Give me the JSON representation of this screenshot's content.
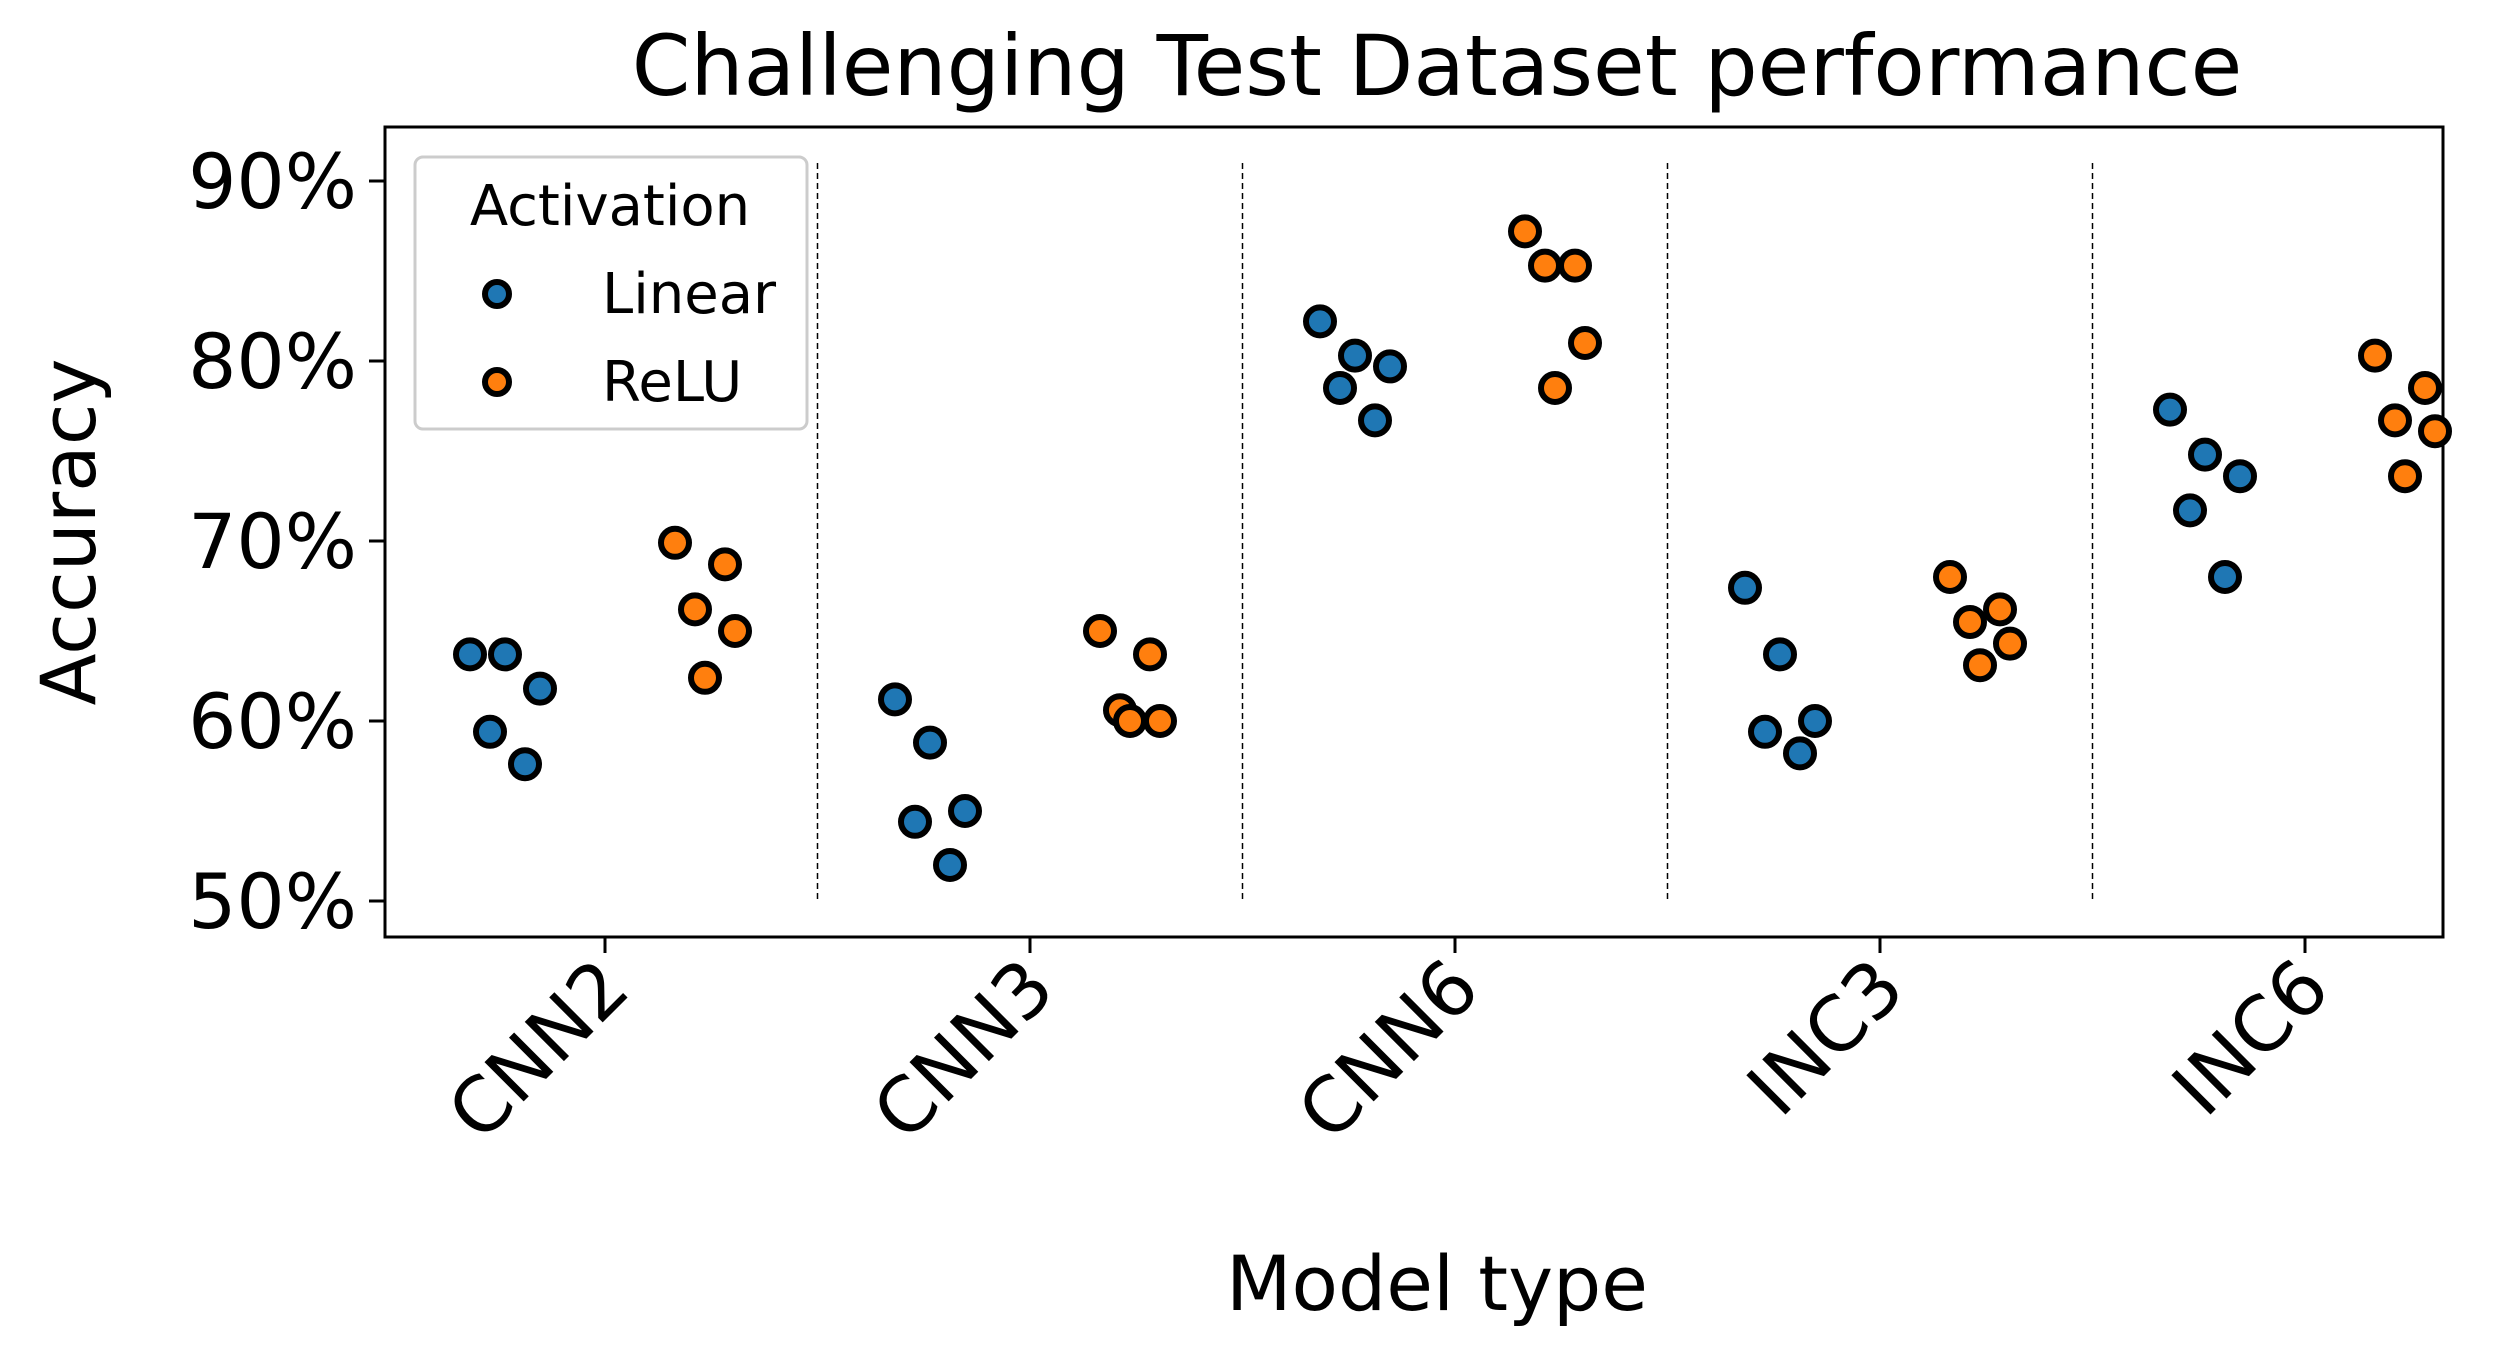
{
  "chart_data": {
    "type": "scatter",
    "title": "Challenging Test Dataset performance",
    "xlabel": "Model type",
    "ylabel": "Accuracy",
    "categories": [
      "CNN2",
      "CNN3",
      "CNN6",
      "INC3",
      "INC6"
    ],
    "ytick_labels": [
      "50%",
      "60%",
      "70%",
      "80%",
      "90%"
    ],
    "yticks": [
      50,
      60,
      70,
      80,
      90
    ],
    "ylim": [
      48,
      93
    ],
    "grid": false,
    "category_separators": "dashed vertical lines",
    "legend": {
      "title": "Activation",
      "placement": "upper-left",
      "entries": [
        "Linear",
        "ReLU"
      ]
    },
    "series": [
      {
        "name": "Linear",
        "color": "#1f77b4",
        "points": [
          {
            "category": "CNN2",
            "values": [
              63.7,
              63.7,
              61.8,
              59.4,
              57.6
            ]
          },
          {
            "category": "CNN3",
            "values": [
              61.2,
              58.8,
              55.0,
              54.4,
              52.0
            ]
          },
          {
            "category": "CNN6",
            "values": [
              82.2,
              80.3,
              79.7,
              78.5,
              76.7
            ]
          },
          {
            "category": "INC3",
            "values": [
              67.4,
              63.7,
              60.0,
              59.4,
              58.2
            ]
          },
          {
            "category": "INC6",
            "values": [
              77.3,
              74.8,
              73.6,
              71.7,
              68.0
            ]
          }
        ]
      },
      {
        "name": "ReLU",
        "color": "#ff7f0e",
        "points": [
          {
            "category": "CNN2",
            "values": [
              69.9,
              68.7,
              66.2,
              65.0,
              62.4
            ]
          },
          {
            "category": "CNN3",
            "values": [
              65.0,
              63.7,
              60.6,
              60.0,
              60.0
            ]
          },
          {
            "category": "CNN6",
            "values": [
              87.2,
              85.3,
              85.3,
              81.0,
              78.5
            ]
          },
          {
            "category": "INC3",
            "values": [
              68.0,
              66.2,
              65.5,
              64.3,
              63.1
            ]
          },
          {
            "category": "INC6",
            "values": [
              80.3,
              78.5,
              76.7,
              76.1,
              73.6
            ]
          }
        ]
      }
    ]
  }
}
